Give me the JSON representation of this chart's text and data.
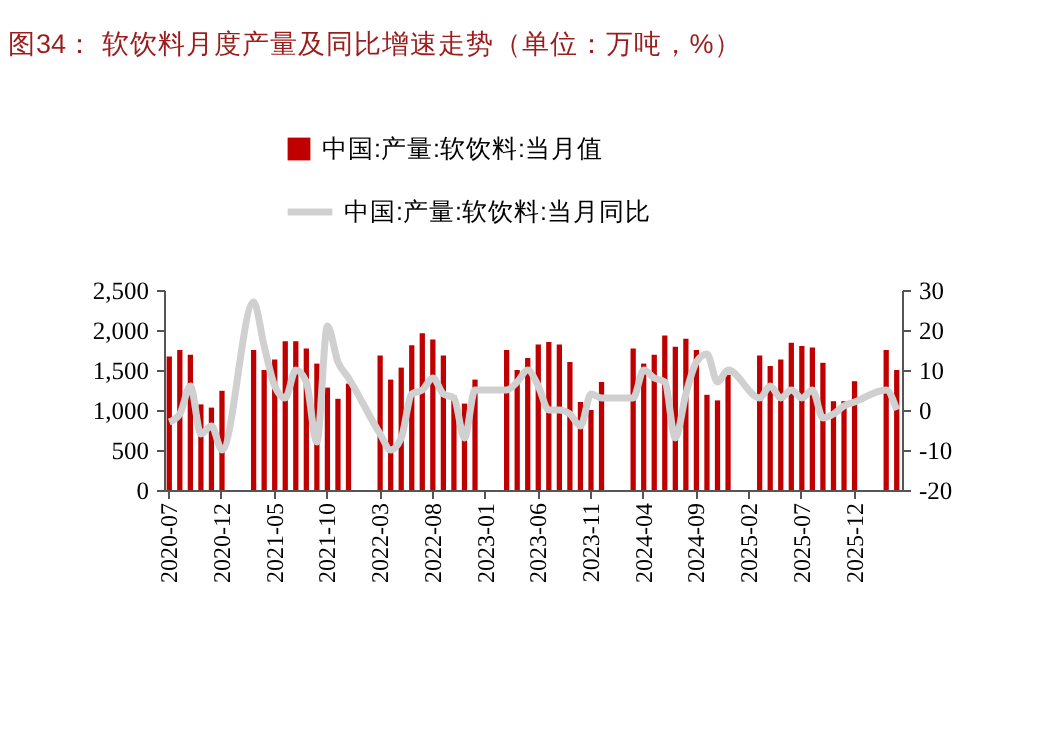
{
  "chart_data": {
    "type": "bar",
    "title": "图34：  软饮料月度产量及同比增速走势（单位：万吨，%）",
    "categories": [
      "2020-07",
      null,
      null,
      null,
      null,
      "2020-12",
      null,
      null,
      null,
      null,
      "2021-05",
      null,
      null,
      null,
      null,
      "2021-10",
      null,
      null,
      null,
      null,
      "2022-03",
      null,
      null,
      null,
      null,
      "2022-08",
      null,
      null,
      null,
      null,
      "2023-01",
      null,
      null,
      null,
      null,
      "2023-06",
      null,
      null,
      null,
      null,
      "2023-11",
      null,
      null,
      null,
      null,
      "2024-04",
      null,
      null,
      null,
      null,
      "2024-09",
      null,
      null,
      null,
      null,
      "2025-02",
      null,
      null,
      null,
      null,
      "2025-07",
      null,
      null,
      null,
      null,
      "2025-12",
      null,
      null,
      null,
      null
    ],
    "series": [
      {
        "name": "中国:产量:软饮料:当月值",
        "color": "#c00000",
        "values": [
          1670,
          1750,
          1690,
          1070,
          1030,
          1240,
          null,
          null,
          1750,
          1500,
          1630,
          1860,
          1860,
          1770,
          1580,
          1280,
          1140,
          1330,
          null,
          null,
          1680,
          1380,
          1530,
          1810,
          1960,
          1880,
          1680,
          1180,
          1080,
          1380,
          null,
          null,
          1750,
          1500,
          1650,
          1820,
          1850,
          1820,
          1600,
          1100,
          1000,
          1350,
          null,
          null,
          1770,
          1580,
          1690,
          1930,
          1790,
          1890,
          1750,
          1190,
          1120,
          1440,
          null,
          null,
          1680,
          1550,
          1630,
          1840,
          1800,
          1780,
          1590,
          1110,
          1110,
          1360,
          null,
          null,
          1750,
          1500
        ]
      },
      {
        "name": "中国:产量:软饮料:当月同比",
        "type": "line",
        "axis": "y2",
        "color": "#d0d0d0",
        "values": [
          -3,
          -1,
          6,
          -6,
          -4,
          -10,
          null,
          null,
          27,
          16,
          6,
          3,
          10,
          7,
          -8,
          21,
          12,
          8,
          null,
          null,
          -6,
          -10,
          -7,
          4,
          5,
          8,
          4,
          3,
          -7,
          5,
          null,
          null,
          5,
          7,
          10,
          6,
          0,
          0,
          -1,
          -4,
          4,
          3,
          null,
          null,
          3,
          10,
          8,
          7,
          -7,
          4,
          12,
          14,
          7,
          10,
          null,
          null,
          3,
          6,
          3,
          5,
          3,
          5,
          -2,
          -1,
          1,
          2,
          null,
          null,
          5,
          0
        ]
      }
    ],
    "ylim": [
      0,
      2500
    ],
    "yticks": [
      0,
      500,
      {
        "value": 1000,
        "label": "1,000"
      },
      {
        "value": 1500,
        "label": "1,500"
      },
      {
        "value": 2000,
        "label": "2,000"
      },
      {
        "value": 2500,
        "label": "2,500"
      }
    ],
    "y2lim": [
      -20,
      30
    ],
    "y2ticks": [
      -20,
      -10,
      0,
      10,
      20,
      30
    ],
    "legend": "top"
  }
}
